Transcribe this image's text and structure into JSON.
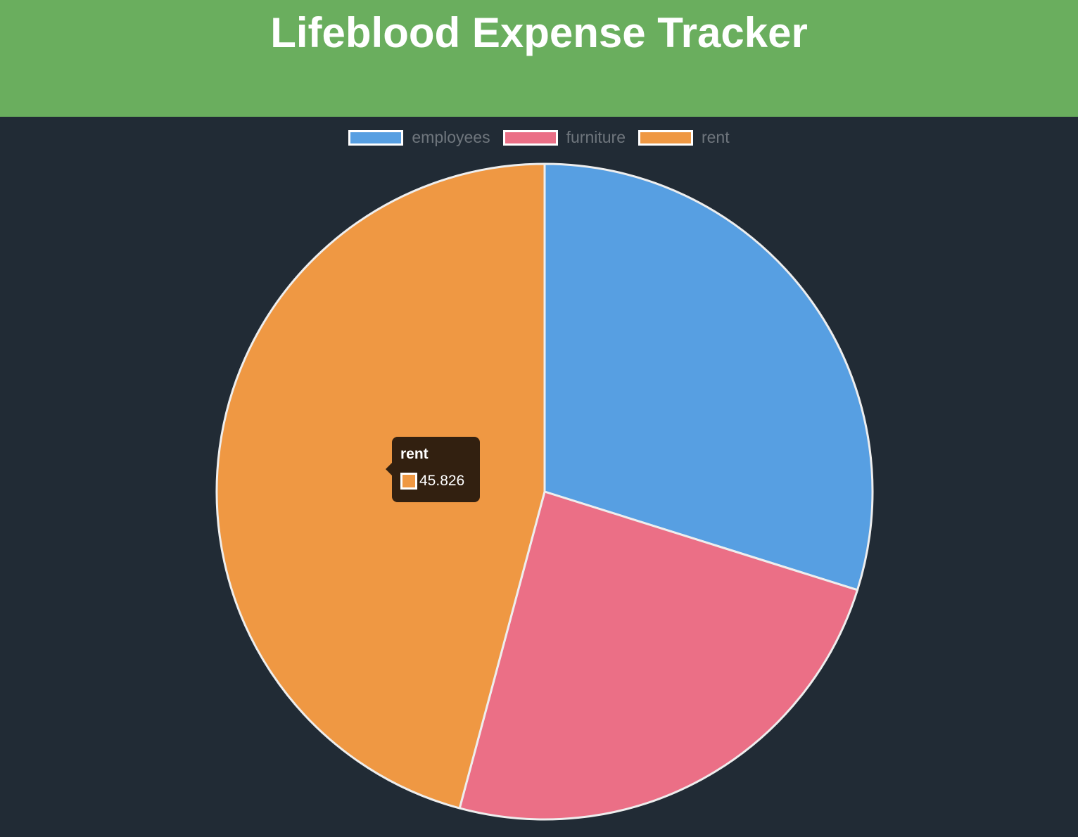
{
  "header": {
    "title": "Lifeblood Expense Tracker",
    "background_color": "#6aae5e"
  },
  "chart_data": {
    "type": "pie",
    "categories": [
      "employees",
      "furniture",
      "rent"
    ],
    "values": [
      29.85,
      24.324,
      45.826
    ],
    "colors": [
      "#579fe2",
      "#eb6f86",
      "#ef9843"
    ],
    "start_angle_deg": -90,
    "legend_position": "top",
    "title": "",
    "segment_border_color": "#eeeeee"
  },
  "tooltip": {
    "title": "rent",
    "value": "45.826",
    "color": "#ef9843"
  }
}
